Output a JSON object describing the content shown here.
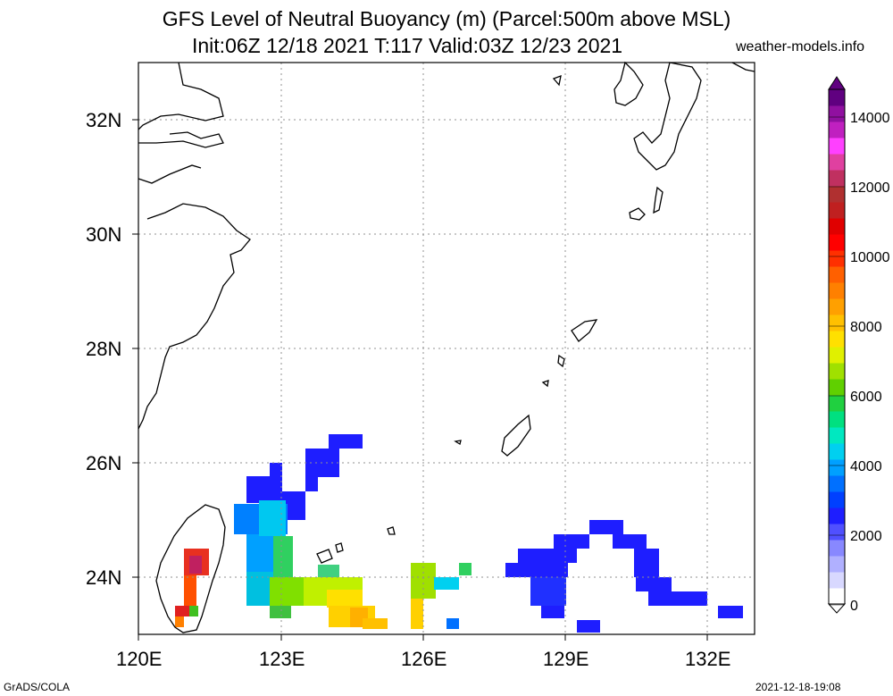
{
  "title_line1": "GFS Level of Neutral Buoyancy (m) (Parcel:500m above MSL)",
  "title_line2": "Init:06Z 12/18 2021 T:117 Valid:03Z 12/23 2021",
  "site": "weather-models.info",
  "footer_left": "GrADS/COLA",
  "footer_right": "2021-12-18-19:08",
  "lat_labels": [
    "32N",
    "30N",
    "28N",
    "26N",
    "24N"
  ],
  "lon_labels": [
    "120E",
    "123E",
    "126E",
    "129E",
    "132E"
  ],
  "colorbar_labels": [
    "14000",
    "12000",
    "10000",
    "8000",
    "6000",
    "4000",
    "2000",
    "0"
  ],
  "colorbar_colors": [
    "#ffffff",
    "#d8d8ff",
    "#b0b0ff",
    "#8888ff",
    "#5050ff",
    "#1e1eff",
    "#0040ff",
    "#0070ff",
    "#00a0ff",
    "#00d0f0",
    "#00e8c0",
    "#00e080",
    "#20d040",
    "#60d000",
    "#a0e000",
    "#e0f000",
    "#ffe000",
    "#ffc000",
    "#ffa000",
    "#ff8000",
    "#ff6000",
    "#ff3000",
    "#ff0000",
    "#e00000",
    "#c02020",
    "#b03030",
    "#c03060",
    "#e040a0",
    "#ff40ff",
    "#c020c0",
    "#9010a0",
    "#600080"
  ],
  "map_extent": {
    "lon_min": 120,
    "lon_max": 133,
    "lat_min": 23,
    "lat_max": 33
  },
  "colors": {
    "coast": "#000000",
    "grid": "#909090",
    "frame": "#000000"
  }
}
